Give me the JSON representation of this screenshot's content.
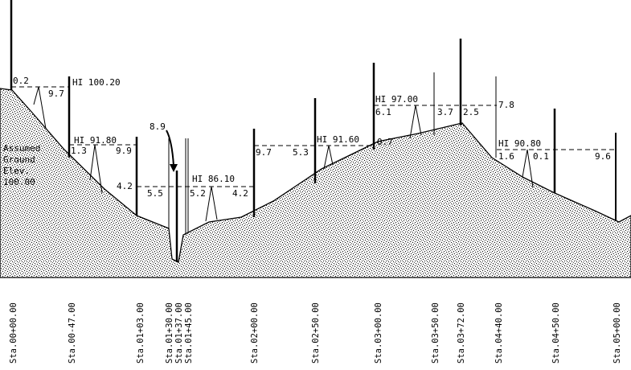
{
  "colors": {
    "ink": "#000000",
    "background": "#ffffff"
  },
  "benchmark_note": [
    "Assumed",
    "Ground",
    "Elev.",
    "100.00"
  ],
  "instrument_heights": [
    "HI 100.20",
    "HI 91.80",
    "HI 86.10",
    "HI 91.60",
    "HI 97.00",
    "HI 90.80"
  ],
  "rod_readings": [
    "0.2",
    "9.7",
    "1.3",
    "9.9",
    "4.2",
    "8.9",
    "5.5",
    "5.2",
    "4.2",
    "9.7",
    "5.3",
    "0.7",
    "6.1",
    "3.7",
    "2.5",
    "7.8",
    "1.6",
    "0.1",
    "9.6"
  ],
  "stations": [
    "Sta.00+00.00",
    "Sta.00-47.00",
    "Sta.01+03.00",
    "Sta.01+30.00",
    "Sta.01+37.00",
    "Sta.01+45.00",
    "Sta.02+00.00",
    "Sta.02+50.00",
    "Sta.03+00.00",
    "Sta.03+50.00",
    "Sta.03+72.00",
    "Sta.04+40.00",
    "Sta.04+50.00",
    "Sta.05+00.00"
  ]
}
